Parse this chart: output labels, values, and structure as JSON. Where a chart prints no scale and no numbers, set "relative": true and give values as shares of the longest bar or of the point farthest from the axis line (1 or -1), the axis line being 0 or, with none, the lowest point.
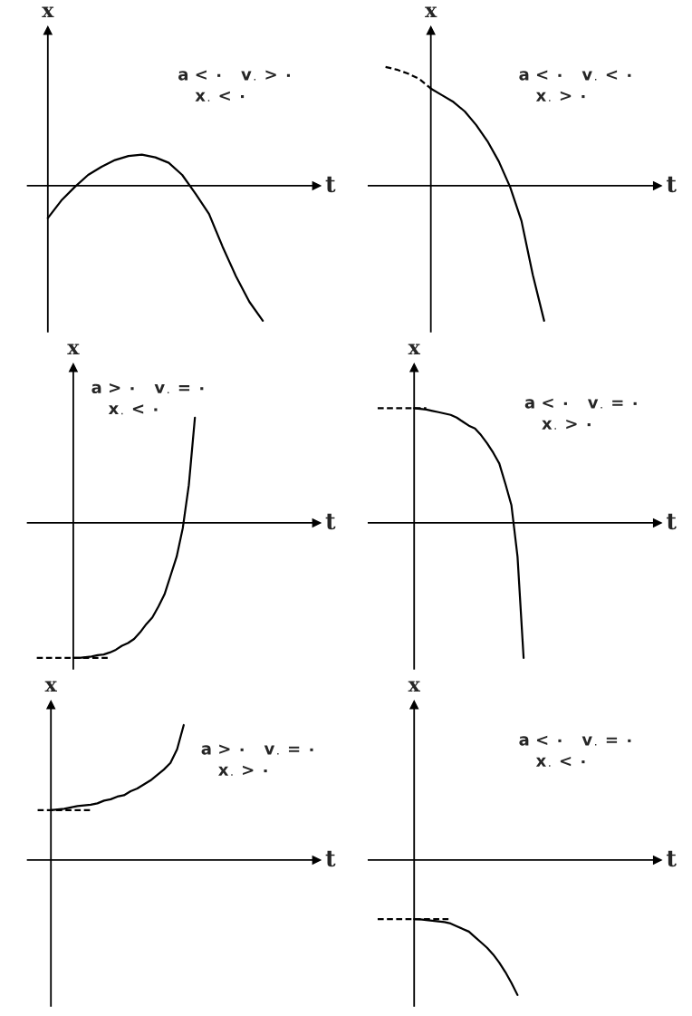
{
  "chart_data": [
    {
      "type": "line",
      "relative": true,
      "xlabel": "t",
      "ylabel": "x",
      "annotations": [
        "a < ۰   v$_{۰}$ > ۰",
        "x$_{۰}$ < ۰"
      ],
      "categories": [
        null,
        null,
        null,
        null,
        null,
        null,
        null,
        null,
        null,
        null,
        null,
        null,
        null,
        null,
        null,
        null,
        null,
        null,
        null,
        null,
        null
      ],
      "series": [
        {
          "color": "#000000",
          "values": [
            -0.24,
            -0.11,
            -0.01,
            0.08,
            0.14,
            0.19,
            0.22,
            0.23,
            0.21,
            0.17,
            0.08,
            -0.06,
            -0.21,
            -0.45,
            -0.67,
            -0.86,
            -1,
            null,
            null,
            null,
            null
          ]
        }
      ]
    },
    {
      "type": "line",
      "relative": true,
      "xlabel": "t",
      "ylabel": "x",
      "annotations": [
        "a < ۰   v$_{۰}$ < ۰",
        "x$_{۰}$ > ۰"
      ],
      "categories": [
        null,
        null,
        null,
        null,
        null,
        null,
        null,
        null,
        null,
        null,
        null,
        null,
        null,
        null,
        null,
        null,
        null,
        null,
        null,
        null,
        null,
        null,
        null,
        null,
        null
      ],
      "series": [
        {
          "color": "#000000",
          "line_style": "dashed",
          "values": [
            0.88,
            0.86,
            0.83,
            0.79,
            0.72,
            null,
            null,
            null,
            null,
            null,
            null,
            null,
            null,
            null,
            null,
            null,
            null,
            null,
            null,
            null,
            null,
            null,
            null,
            null,
            null
          ]
        },
        {
          "color": "#000000",
          "values": [
            null,
            null,
            null,
            null,
            0.72,
            0.67,
            0.62,
            0.55,
            0.45,
            0.33,
            0.18,
            -0.01,
            -0.26,
            -0.66,
            -1,
            null,
            null,
            null,
            null,
            null,
            null,
            null,
            null,
            null,
            null
          ]
        }
      ]
    },
    {
      "type": "line",
      "relative": true,
      "xlabel": "t",
      "ylabel": "x",
      "annotations": [
        "a > ۰   v$_{۰}$ = ۰",
        "x$_{۰}$ < ۰"
      ],
      "categories": [
        null,
        null,
        null,
        null,
        null,
        null,
        null,
        null,
        null,
        null,
        null,
        null,
        null,
        null,
        null,
        null,
        null,
        null,
        null,
        null,
        null,
        null,
        null,
        null,
        null,
        null,
        null,
        null,
        null,
        null,
        null,
        null,
        null,
        null,
        null,
        null,
        null,
        null,
        null,
        null,
        null,
        null,
        null,
        null,
        null,
        null,
        null
      ],
      "series": [
        {
          "color": "#000000",
          "line_style": "dashed",
          "values": [
            -1,
            -1,
            -1,
            -1,
            -1,
            -1,
            -1,
            -1,
            -1,
            -1,
            -1,
            -1,
            -1,
            null,
            null,
            null,
            null,
            null,
            null,
            null,
            null,
            null,
            null,
            null,
            null,
            null,
            null,
            null,
            null,
            null,
            null,
            null,
            null,
            null,
            null,
            null,
            null,
            null,
            null,
            null,
            null,
            null,
            null,
            null,
            null,
            null,
            null
          ]
        },
        {
          "color": "#000000",
          "values": [
            null,
            null,
            null,
            null,
            null,
            null,
            -1,
            -1,
            -0.995,
            -0.99,
            -0.98,
            -0.975,
            -0.96,
            -0.94,
            -0.91,
            -0.89,
            -0.86,
            -0.81,
            -0.75,
            -0.7,
            -0.62,
            -0.53,
            -0.39,
            -0.25,
            -0.04,
            0.28,
            0.78,
            null,
            null,
            null,
            null,
            null,
            null,
            null,
            null,
            null,
            null,
            null,
            null,
            null,
            null,
            null,
            null,
            null,
            null,
            null,
            null
          ]
        }
      ]
    },
    {
      "type": "line",
      "relative": true,
      "xlabel": "t",
      "ylabel": "x",
      "annotations": [
        "a < ۰   v$_{۰}$ = ۰",
        "x$_{۰}$ > ۰"
      ],
      "categories": [
        null,
        null,
        null,
        null,
        null,
        null,
        null,
        null,
        null,
        null,
        null,
        null,
        null,
        null,
        null,
        null,
        null,
        null,
        null,
        null,
        null,
        null,
        null,
        null,
        null,
        null,
        null,
        null,
        null,
        null,
        null,
        null,
        null,
        null,
        null,
        null,
        null,
        null,
        null,
        null,
        null,
        null,
        null,
        null,
        null,
        null,
        null
      ],
      "series": [
        {
          "color": "#000000",
          "line_style": "dashed",
          "values": [
            0.85,
            0.85,
            0.85,
            0.85,
            0.85,
            0.85,
            0.85,
            0.85,
            0.85,
            null,
            null,
            null,
            null,
            null,
            null,
            null,
            null,
            null,
            null,
            null,
            null,
            null,
            null,
            null,
            null,
            null,
            null,
            null,
            null,
            null,
            null,
            null,
            null,
            null,
            null,
            null,
            null,
            null,
            null,
            null,
            null,
            null,
            null,
            null,
            null,
            null,
            null
          ]
        },
        {
          "color": "#000000",
          "values": [
            null,
            null,
            null,
            null,
            null,
            null,
            0.85,
            0.845,
            0.84,
            0.83,
            0.82,
            0.81,
            0.8,
            0.78,
            0.75,
            0.72,
            0.7,
            0.65,
            0.59,
            0.52,
            0.44,
            0.29,
            0.13,
            -0.25,
            -1,
            null,
            null,
            null,
            null,
            null,
            null,
            null,
            null,
            null,
            null,
            null,
            null,
            null,
            null,
            null,
            null,
            null,
            null,
            null,
            null,
            null,
            null
          ]
        }
      ]
    },
    {
      "type": "line",
      "relative": true,
      "xlabel": "t",
      "ylabel": "x",
      "annotations": [
        "a > ۰   v$_{۰}$ = ۰",
        "x$_{۰}$ > ۰"
      ],
      "categories": [
        null,
        null,
        null,
        null,
        null,
        null,
        null,
        null,
        null,
        null,
        null,
        null,
        null,
        null,
        null,
        null,
        null,
        null,
        null,
        null,
        null,
        null,
        null,
        null,
        null,
        null,
        null,
        null,
        null,
        null,
        null,
        null,
        null,
        null,
        null,
        null,
        null,
        null,
        null,
        null,
        null,
        null,
        null
      ],
      "series": [
        {
          "color": "#000000",
          "line_style": "dashed",
          "values": [
            0.37,
            0.37,
            0.37,
            0.37,
            0.37,
            0.37,
            0.37,
            0.37,
            0.37,
            null,
            null,
            null,
            null,
            null,
            null,
            null,
            null,
            null,
            null,
            null,
            null,
            null,
            null,
            null,
            null,
            null,
            null,
            null,
            null,
            null,
            null,
            null,
            null,
            null,
            null,
            null,
            null,
            null,
            null,
            null,
            null,
            null,
            null
          ]
        },
        {
          "color": "#000000",
          "values": [
            null,
            null,
            0.37,
            0.375,
            0.38,
            0.39,
            0.4,
            0.405,
            0.41,
            0.42,
            0.44,
            0.45,
            0.47,
            0.48,
            0.51,
            0.53,
            0.56,
            0.59,
            0.63,
            0.67,
            0.72,
            0.82,
            1,
            null,
            null,
            null,
            null,
            null,
            null,
            null,
            null,
            null,
            null,
            null,
            null,
            null,
            null,
            null,
            null,
            null,
            null,
            null,
            null
          ]
        }
      ]
    },
    {
      "type": "line",
      "relative": true,
      "xlabel": "t",
      "ylabel": "x",
      "annotations": [
        "a < ۰   v$_{۰}$ = ۰",
        "x$_{۰}$ < ۰"
      ],
      "categories": [
        null,
        null,
        null,
        null,
        null,
        null,
        null,
        null,
        null,
        null,
        null,
        null,
        null,
        null,
        null,
        null,
        null,
        null,
        null,
        null,
        null,
        null,
        null,
        null,
        null,
        null,
        null,
        null,
        null,
        null,
        null,
        null,
        null,
        null,
        null,
        null,
        null,
        null,
        null,
        null,
        null,
        null,
        null,
        null,
        null,
        null,
        null
      ],
      "series": [
        {
          "color": "#000000",
          "line_style": "dashed",
          "values": [
            -0.437,
            -0.437,
            -0.437,
            -0.437,
            -0.437,
            -0.437,
            -0.437,
            -0.437,
            -0.437,
            -0.437,
            -0.437,
            -0.437,
            -0.437,
            null,
            null,
            null,
            null,
            null,
            null,
            null,
            null,
            null,
            null,
            null,
            null,
            null,
            null,
            null,
            null,
            null,
            null,
            null,
            null,
            null,
            null,
            null,
            null,
            null,
            null,
            null,
            null,
            null,
            null,
            null,
            null,
            null,
            null
          ]
        },
        {
          "color": "#000000",
          "values": [
            null,
            null,
            null,
            null,
            null,
            null,
            -0.437,
            -0.44,
            -0.445,
            -0.45,
            -0.455,
            -0.46,
            -0.47,
            -0.49,
            -0.51,
            -0.53,
            -0.57,
            -0.61,
            -0.65,
            -0.7,
            -0.76,
            -0.83,
            -0.91,
            -1,
            null,
            null,
            null,
            null,
            null,
            null,
            null,
            null,
            null,
            null,
            null,
            null,
            null,
            null,
            null,
            null,
            null,
            null,
            null,
            null,
            null,
            null,
            null
          ]
        }
      ]
    }
  ]
}
